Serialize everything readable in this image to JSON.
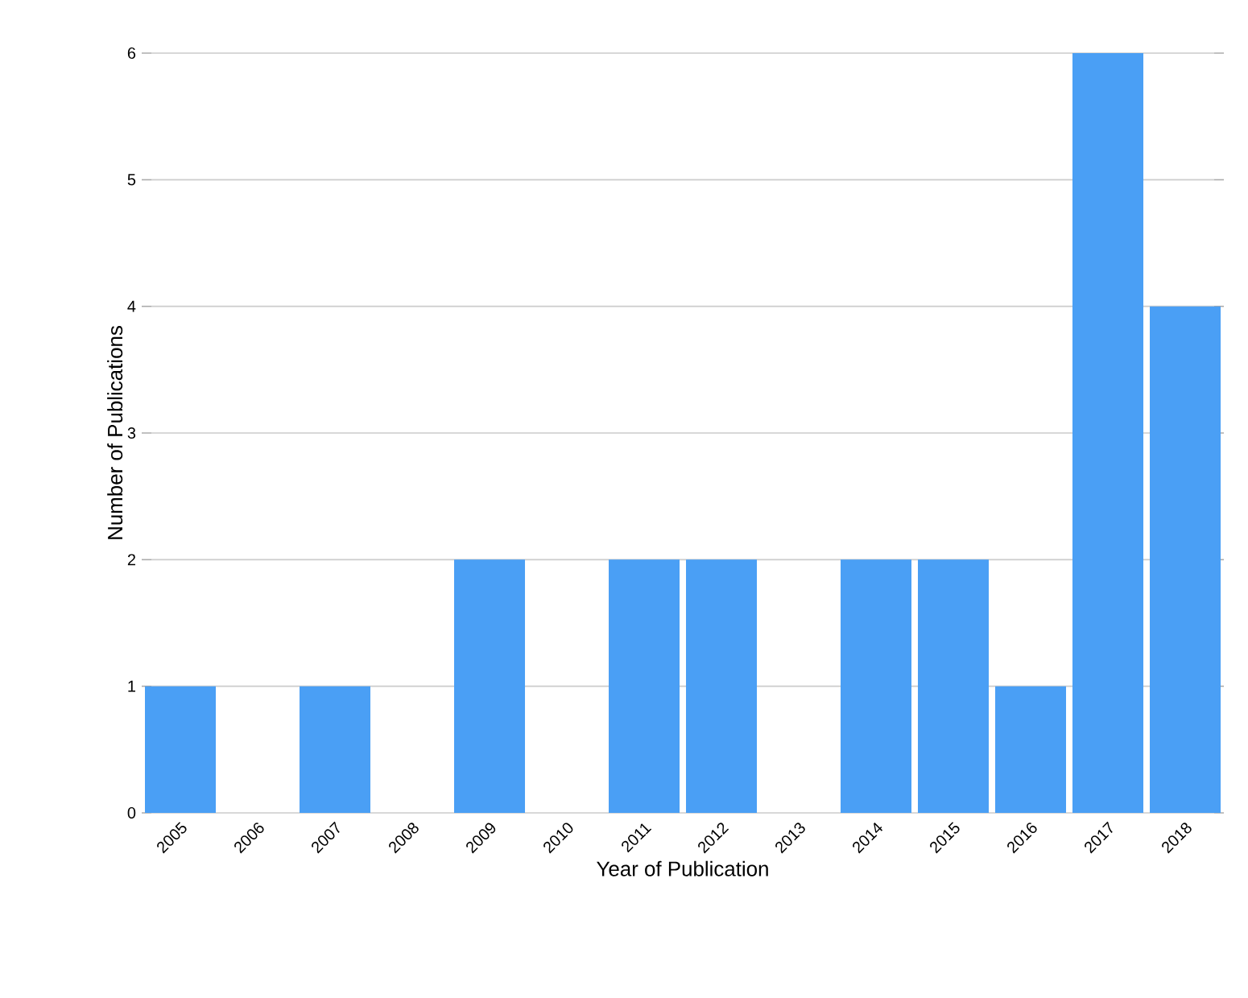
{
  "chart_data": {
    "type": "bar",
    "xlabel": "Year of Publication",
    "ylabel": "Number of Publications",
    "categories": [
      "2005",
      "2006",
      "2007",
      "2008",
      "2009",
      "2010",
      "2011",
      "2012",
      "2013",
      "2014",
      "2015",
      "2016",
      "2017",
      "2018"
    ],
    "values": [
      1,
      0,
      1,
      0,
      2,
      0,
      2,
      2,
      0,
      2,
      2,
      1,
      6,
      4
    ],
    "color": "#4a9ff5",
    "ylim": [
      0,
      6
    ],
    "yticks": [
      0,
      1,
      2,
      3,
      4,
      5,
      6
    ],
    "grid": "y"
  }
}
